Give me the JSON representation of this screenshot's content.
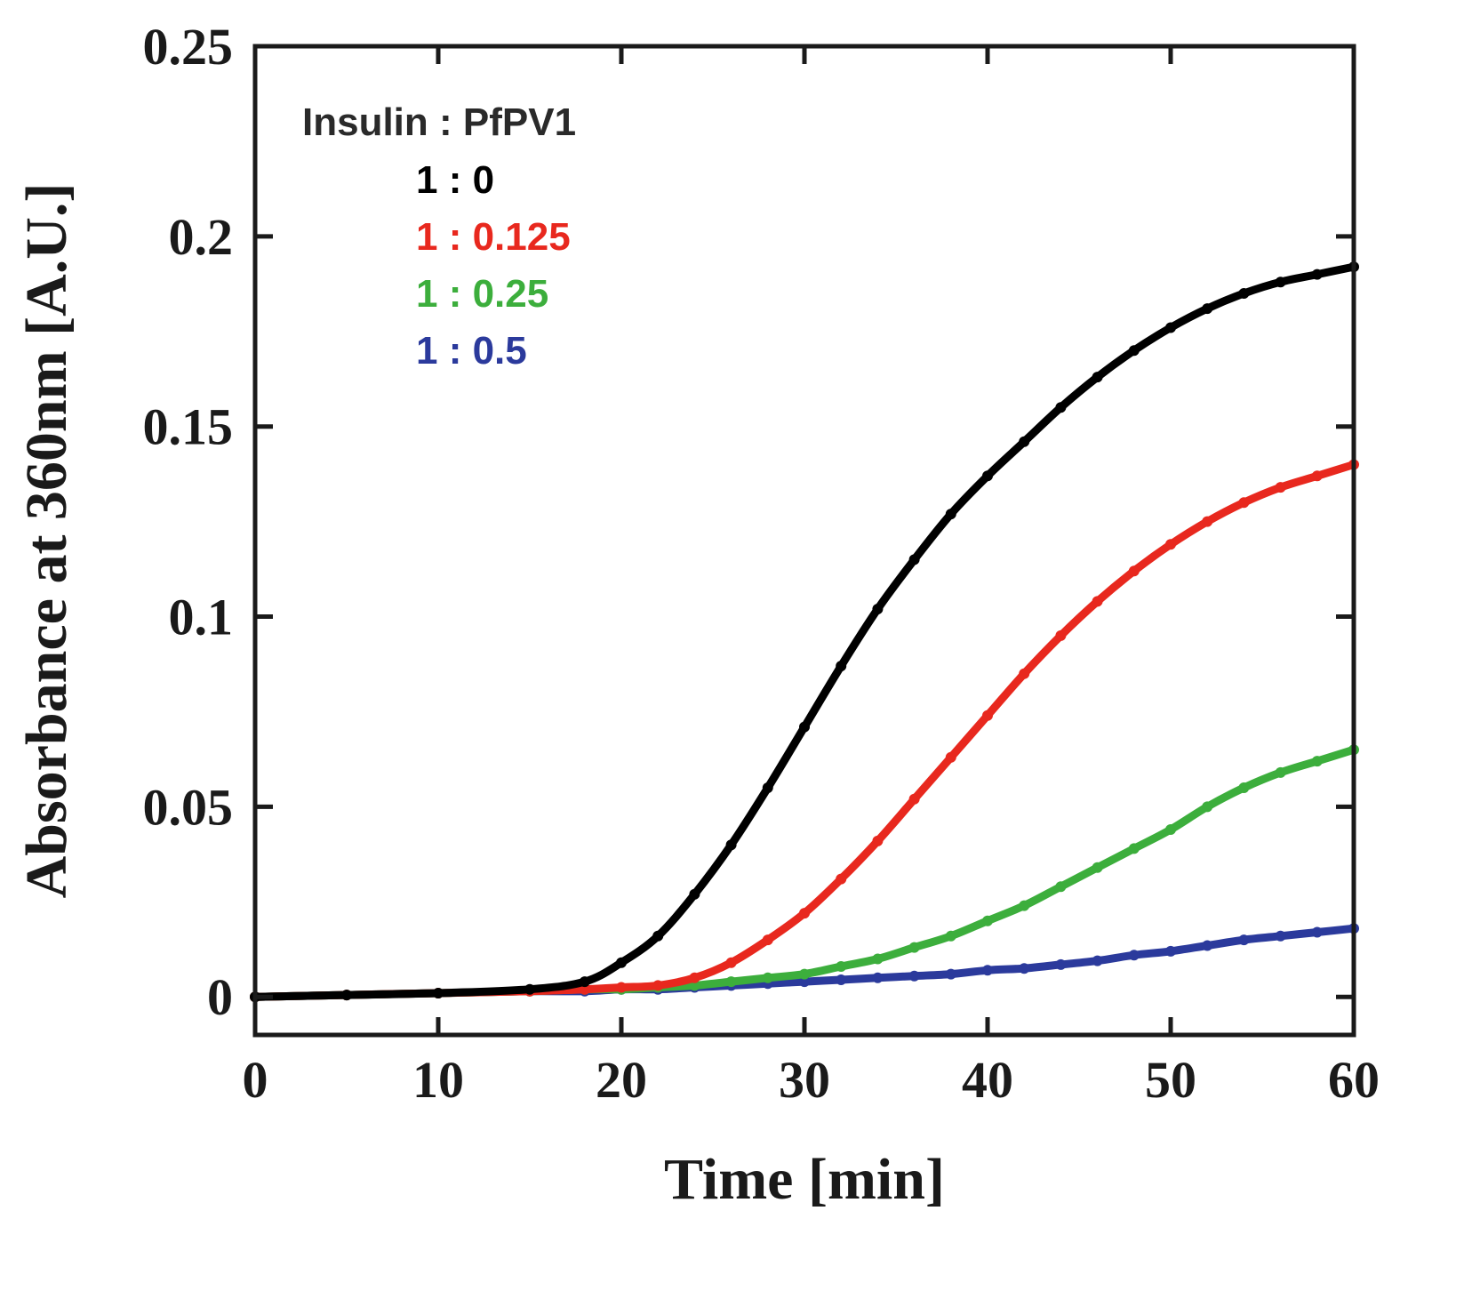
{
  "chart_data": {
    "type": "line",
    "title": "",
    "xlabel": "Time [min]",
    "ylabel": "Absorbance at 360nm [A.U.]",
    "xlim": [
      0,
      60
    ],
    "ylim": [
      -0.01,
      0.25
    ],
    "xticks": [
      0,
      10,
      20,
      30,
      40,
      50,
      60
    ],
    "xtick_labels": [
      "0",
      "10",
      "20",
      "30",
      "40",
      "50",
      "60"
    ],
    "yticks": [
      0,
      0.05,
      0.1,
      0.15,
      0.2,
      0.25
    ],
    "ytick_labels": [
      "0",
      "0.05",
      "0.1",
      "0.15",
      "0.2",
      "0.25"
    ],
    "grid": false,
    "legend": {
      "title": "Insulin : PfPV1",
      "placement": "top-left"
    },
    "x": [
      0,
      5,
      10,
      15,
      18,
      20,
      22,
      24,
      26,
      28,
      30,
      32,
      34,
      36,
      38,
      40,
      42,
      44,
      46,
      48,
      50,
      52,
      54,
      56,
      58,
      60
    ],
    "series": [
      {
        "name": "1 : 0",
        "color": "#000000",
        "values": [
          0.0,
          0.0005,
          0.001,
          0.002,
          0.004,
          0.009,
          0.016,
          0.027,
          0.04,
          0.055,
          0.071,
          0.087,
          0.102,
          0.115,
          0.127,
          0.137,
          0.146,
          0.155,
          0.163,
          0.17,
          0.176,
          0.181,
          0.185,
          0.188,
          0.19,
          0.192
        ]
      },
      {
        "name": "1 : 0.125",
        "color": "#e8281e",
        "values": [
          0.0,
          0.0005,
          0.001,
          0.0015,
          0.002,
          0.0025,
          0.003,
          0.005,
          0.009,
          0.015,
          0.022,
          0.031,
          0.041,
          0.052,
          0.063,
          0.074,
          0.085,
          0.095,
          0.104,
          0.112,
          0.119,
          0.125,
          0.13,
          0.134,
          0.137,
          0.14
        ]
      },
      {
        "name": "1 : 0.25",
        "color": "#3cae3c",
        "values": [
          0.0,
          0.0005,
          0.001,
          0.0015,
          0.002,
          0.002,
          0.0025,
          0.003,
          0.004,
          0.005,
          0.006,
          0.008,
          0.01,
          0.013,
          0.016,
          0.02,
          0.024,
          0.029,
          0.034,
          0.039,
          0.044,
          0.05,
          0.055,
          0.059,
          0.062,
          0.065
        ]
      },
      {
        "name": "1 : 0.5",
        "color": "#2b3a9c",
        "values": [
          0.0,
          0.0005,
          0.001,
          0.0015,
          0.0015,
          0.002,
          0.002,
          0.0025,
          0.003,
          0.0035,
          0.004,
          0.0045,
          0.005,
          0.0055,
          0.006,
          0.007,
          0.0075,
          0.0085,
          0.0095,
          0.011,
          0.012,
          0.0135,
          0.015,
          0.016,
          0.017,
          0.018
        ]
      }
    ]
  }
}
